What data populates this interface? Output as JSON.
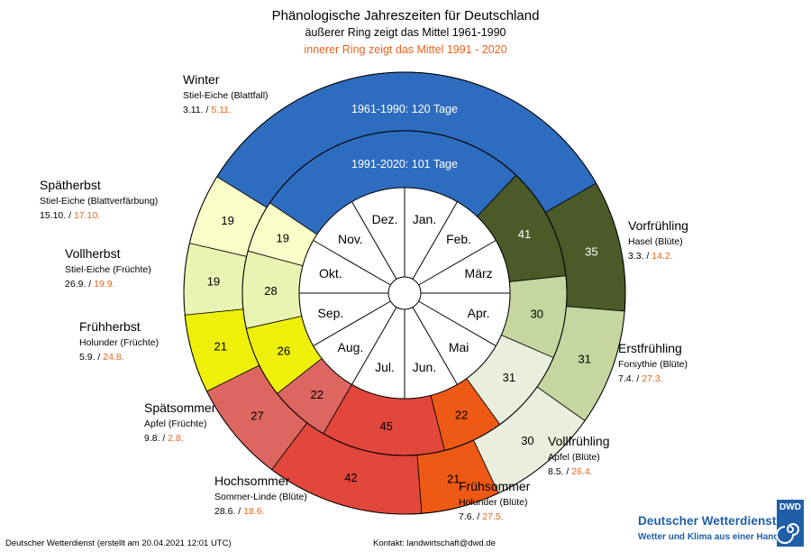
{
  "header": {
    "title": "Phänologische Jahreszeiten für Deutschland",
    "subtitle_outer": "äußerer Ring zeigt das Mittel 1961-1990",
    "subtitle_inner": "innerer Ring zeigt das Mittel 1991 - 2020"
  },
  "footer": {
    "left": "Deutscher Wetterdienst (erstellt am 20.04.2021 12:01 UTC)",
    "contact": "Kontakt: landwirtschaft@dwd.de"
  },
  "logo": {
    "name": "Deutscher Wetterdienst",
    "slogan": "Wetter und Klima aus einer Hand",
    "badge": "DWD",
    "color": "#1e5fa8"
  },
  "chart_data": {
    "type": "ring",
    "outer_ring_label": "1961-1990",
    "inner_ring_label": "1991-2020",
    "months": [
      "Jan.",
      "Feb.",
      "März",
      "Apr.",
      "Mai",
      "Jun.",
      "Jul.",
      "Aug.",
      "Sep.",
      "Okt.",
      "Nov.",
      "Dez."
    ],
    "seasons": [
      {
        "name": "Vorfrühling",
        "indicator": "Hasel (Blüte)",
        "date_1961_1990": "3.3.",
        "date_1991_2020": "14.2.",
        "days_1961_1990": 35,
        "days_1991_2020": 41,
        "color": "#4b5a28"
      },
      {
        "name": "Erstfrühling",
        "indicator": "Forsythie (Blüte)",
        "date_1961_1990": "7.4.",
        "date_1991_2020": "27.3.",
        "days_1961_1990": 31,
        "days_1991_2020": 30,
        "color": "#c5d6a0"
      },
      {
        "name": "Vollfrühling",
        "indicator": "Apfel (Blüte)",
        "date_1961_1990": "8.5.",
        "date_1991_2020": "26.4.",
        "days_1961_1990": 30,
        "days_1991_2020": 31,
        "color": "#e9efdc"
      },
      {
        "name": "Frühsommer",
        "indicator": "Holunder (Blüte)",
        "date_1961_1990": "7.6.",
        "date_1991_2020": "27.5.",
        "days_1961_1990": 21,
        "days_1991_2020": 22,
        "color": "#ee5a15"
      },
      {
        "name": "Hochsommer",
        "indicator": "Sommer-Linde (Blüte)",
        "date_1961_1990": "28.6.",
        "date_1991_2020": "18.6.",
        "days_1961_1990": 42,
        "days_1991_2020": 45,
        "color": "#e2473b"
      },
      {
        "name": "Spätsommer",
        "indicator": "Apfel (Früchte)",
        "date_1961_1990": "9.8.",
        "date_1991_2020": "2.8.",
        "days_1961_1990": 27,
        "days_1991_2020": 22,
        "color": "#dd6661"
      },
      {
        "name": "Frühherbst",
        "indicator": "Holunder (Früchte)",
        "date_1961_1990": "5.9.",
        "date_1991_2020": "24.8.",
        "days_1961_1990": 21,
        "days_1991_2020": 26,
        "color": "#eef00a"
      },
      {
        "name": "Vollherbst",
        "indicator": "Stiel-Eiche (Früchte)",
        "date_1961_1990": "26.9.",
        "date_1991_2020": "19.9.",
        "days_1961_1990": 19,
        "days_1991_2020": 28,
        "color": "#e9f3b2"
      },
      {
        "name": "Spätherbst",
        "indicator": "Stiel-Eiche (Blattverfärbung)",
        "date_1961_1990": "15.10.",
        "date_1991_2020": "17.10.",
        "days_1961_1990": 19,
        "days_1991_2020": 19,
        "color": "#fafdc8"
      },
      {
        "name": "Winter",
        "indicator": "Stiel-Eiche (Blattfall)",
        "date_1961_1990": "3.11.",
        "date_1991_2020": "5.11.",
        "days_1961_1990": 120,
        "days_1991_2020": 101,
        "color": "#2e6cbf"
      }
    ],
    "winter_label_outer": "1961-1990: 120 Tage",
    "winter_label_inner": "1991-2020: 101 Tage",
    "highlight_color": "#e8641e"
  }
}
